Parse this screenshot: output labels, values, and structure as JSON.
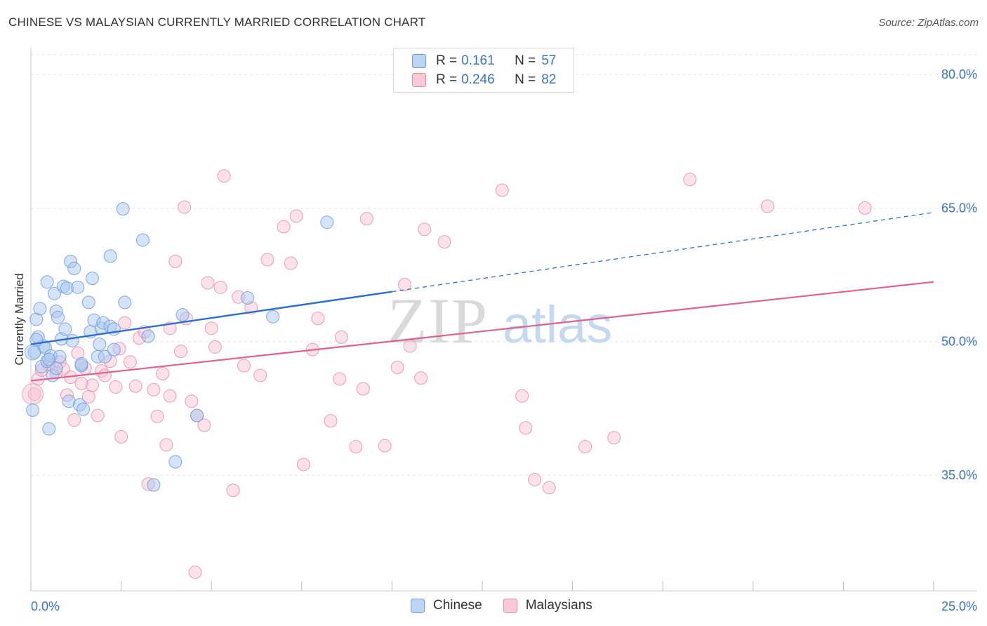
{
  "title": "CHINESE VS MALAYSIAN CURRENTLY MARRIED CORRELATION CHART",
  "source": "Source: ZipAtlas.com",
  "watermark": {
    "zip": "ZIP",
    "atlas": "atlas"
  },
  "legend_top": {
    "r_label": "R =",
    "n_label": "N =",
    "rows": [
      {
        "series": "Chinese",
        "r": "0.161",
        "n": "57"
      },
      {
        "series": "Malaysians",
        "r": "0.246",
        "n": "82"
      }
    ]
  },
  "colors": {
    "chinese_fill": "#a9c8f0",
    "chinese_stroke": "#6e9bd9",
    "chinese_line": "#2a6fd0",
    "malaysian_fill": "#f7bdd0",
    "malaysian_stroke": "#e68aa8",
    "malaysian_line": "#e0628c",
    "axis_text": "#3b73c4",
    "grid": "#e3e3e3"
  },
  "chart_data": {
    "type": "scatter",
    "title": "CHINESE VS MALAYSIAN CURRENTLY MARRIED CORRELATION CHART",
    "xlabel": "",
    "ylabel": "Currently Married",
    "xlim": [
      0,
      25
    ],
    "ylim": [
      22,
      83
    ],
    "x_tick_labels": [
      "0.0%",
      "25.0%"
    ],
    "y_ticks": [
      35,
      50,
      65,
      80
    ],
    "y_tick_labels": [
      "35.0%",
      "50.0%",
      "65.0%",
      "80.0%"
    ],
    "legend": [
      "Chinese",
      "Malaysians"
    ],
    "series": [
      {
        "name": "Chinese",
        "r": 0.161,
        "n": 57,
        "trend": {
          "x0": 0,
          "y0": 49.7,
          "x1": 10,
          "y1": 55.6,
          "dashed_to_x": 25,
          "dashed_to_y": 64.5
        },
        "points": [
          [
            0.05,
            42.3
          ],
          [
            0.1,
            48.8
          ],
          [
            0.15,
            52.5
          ],
          [
            0.2,
            50.5
          ],
          [
            0.25,
            53.7
          ],
          [
            0.3,
            47.2
          ],
          [
            0.35,
            49.5
          ],
          [
            0.4,
            49.3
          ],
          [
            0.45,
            56.7
          ],
          [
            0.45,
            47.8
          ],
          [
            0.5,
            40.2
          ],
          [
            0.55,
            48.4
          ],
          [
            0.6,
            46.2
          ],
          [
            0.65,
            55.4
          ],
          [
            0.7,
            53.4
          ],
          [
            0.7,
            47.0
          ],
          [
            0.75,
            52.7
          ],
          [
            0.8,
            48.3
          ],
          [
            0.85,
            50.3
          ],
          [
            0.9,
            56.2
          ],
          [
            0.95,
            51.4
          ],
          [
            1.0,
            56.0
          ],
          [
            1.05,
            43.3
          ],
          [
            1.1,
            59.0
          ],
          [
            1.15,
            50.1
          ],
          [
            1.2,
            58.2
          ],
          [
            1.3,
            56.1
          ],
          [
            1.35,
            42.9
          ],
          [
            1.4,
            47.3
          ],
          [
            1.45,
            42.4
          ],
          [
            1.6,
            54.4
          ],
          [
            1.65,
            51.1
          ],
          [
            1.7,
            57.1
          ],
          [
            1.75,
            52.4
          ],
          [
            1.85,
            48.3
          ],
          [
            1.9,
            49.7
          ],
          [
            1.95,
            51.5
          ],
          [
            2.0,
            52.1
          ],
          [
            2.05,
            48.3
          ],
          [
            2.2,
            51.7
          ],
          [
            2.2,
            59.6
          ],
          [
            2.3,
            51.4
          ],
          [
            2.3,
            49.1
          ],
          [
            2.55,
            64.9
          ],
          [
            2.6,
            54.4
          ],
          [
            3.1,
            61.4
          ],
          [
            3.25,
            50.6
          ],
          [
            3.4,
            33.9
          ],
          [
            4.0,
            36.5
          ],
          [
            4.2,
            53.0
          ],
          [
            4.6,
            41.7
          ],
          [
            6.0,
            54.9
          ],
          [
            6.7,
            52.8
          ],
          [
            8.2,
            63.4
          ],
          [
            0.15,
            50.2
          ],
          [
            1.4,
            47.5
          ],
          [
            0.5,
            48.0
          ]
        ]
      },
      {
        "name": "Malaysians",
        "r": 0.246,
        "n": 82,
        "trend": {
          "x0": 0,
          "y0": 45.6,
          "x1": 25,
          "y1": 56.7
        },
        "points": [
          [
            0.1,
            44.1
          ],
          [
            0.2,
            45.8
          ],
          [
            0.3,
            46.8
          ],
          [
            0.5,
            47.4
          ],
          [
            0.7,
            46.5
          ],
          [
            0.8,
            47.7
          ],
          [
            0.9,
            46.9
          ],
          [
            1.0,
            44.0
          ],
          [
            1.1,
            46.0
          ],
          [
            1.2,
            41.2
          ],
          [
            1.3,
            48.7
          ],
          [
            1.4,
            45.3
          ],
          [
            1.5,
            47.0
          ],
          [
            1.6,
            43.8
          ],
          [
            1.7,
            45.1
          ],
          [
            1.85,
            41.7
          ],
          [
            1.95,
            46.7
          ],
          [
            2.05,
            46.2
          ],
          [
            2.2,
            47.8
          ],
          [
            2.35,
            44.9
          ],
          [
            2.45,
            49.2
          ],
          [
            2.5,
            39.3
          ],
          [
            2.6,
            52.1
          ],
          [
            2.75,
            47.7
          ],
          [
            2.9,
            45.0
          ],
          [
            3.0,
            50.4
          ],
          [
            3.15,
            51.1
          ],
          [
            3.25,
            34.0
          ],
          [
            3.4,
            44.6
          ],
          [
            3.5,
            41.6
          ],
          [
            3.65,
            46.4
          ],
          [
            3.75,
            38.4
          ],
          [
            3.85,
            43.9
          ],
          [
            4.0,
            59.0
          ],
          [
            4.15,
            48.9
          ],
          [
            4.25,
            65.1
          ],
          [
            4.3,
            52.6
          ],
          [
            4.45,
            43.3
          ],
          [
            4.6,
            41.7
          ],
          [
            4.8,
            40.6
          ],
          [
            4.9,
            56.6
          ],
          [
            5.0,
            51.5
          ],
          [
            5.1,
            49.4
          ],
          [
            5.25,
            56.1
          ],
          [
            5.35,
            68.6
          ],
          [
            5.6,
            33.3
          ],
          [
            5.75,
            55.0
          ],
          [
            5.9,
            47.3
          ],
          [
            6.1,
            53.8
          ],
          [
            6.35,
            46.2
          ],
          [
            6.55,
            59.2
          ],
          [
            7.0,
            62.9
          ],
          [
            7.2,
            58.8
          ],
          [
            7.35,
            64.1
          ],
          [
            7.55,
            36.2
          ],
          [
            7.8,
            49.1
          ],
          [
            7.95,
            52.6
          ],
          [
            8.3,
            41.1
          ],
          [
            8.55,
            45.8
          ],
          [
            8.6,
            50.5
          ],
          [
            9.0,
            38.2
          ],
          [
            9.2,
            44.7
          ],
          [
            9.3,
            63.8
          ],
          [
            9.8,
            38.3
          ],
          [
            10.15,
            47.1
          ],
          [
            10.35,
            56.4
          ],
          [
            10.5,
            49.5
          ],
          [
            10.8,
            45.9
          ],
          [
            10.9,
            62.6
          ],
          [
            11.45,
            61.2
          ],
          [
            13.05,
            67.0
          ],
          [
            13.6,
            43.9
          ],
          [
            13.7,
            40.3
          ],
          [
            13.95,
            34.5
          ],
          [
            14.35,
            33.6
          ],
          [
            15.35,
            38.2
          ],
          [
            16.15,
            39.2
          ],
          [
            18.25,
            68.2
          ],
          [
            20.4,
            65.2
          ],
          [
            23.1,
            65.0
          ],
          [
            4.55,
            24.1
          ],
          [
            3.85,
            51.5
          ]
        ]
      }
    ]
  }
}
